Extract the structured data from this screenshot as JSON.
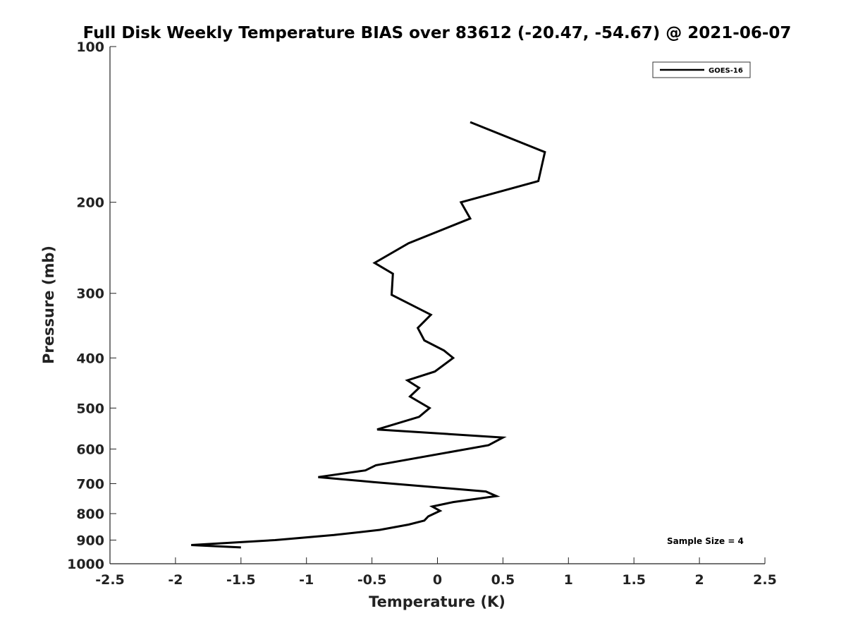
{
  "chart_data": {
    "type": "line",
    "title": "Full Disk Weekly Temperature BIAS over 83612 (-20.47, -54.67) @ 2021-06-07",
    "xlabel": "Temperature (K)",
    "ylabel": "Pressure (mb)",
    "xlim": [
      -2.5,
      2.5
    ],
    "ylim": [
      100,
      1000
    ],
    "y_scale": "log",
    "y_reversed": true,
    "x_ticks": [
      -2.5,
      -2,
      -1.5,
      -1,
      -0.5,
      0,
      0.5,
      1,
      1.5,
      2,
      2.5
    ],
    "x_tick_labels": [
      "-2.5",
      "-2",
      "-1.5",
      "-1",
      "-0.5",
      "0",
      "0.5",
      "1",
      "1.5",
      "2",
      "2.5"
    ],
    "y_ticks": [
      100,
      200,
      300,
      400,
      500,
      600,
      700,
      800,
      900,
      1000
    ],
    "y_tick_labels": [
      "100",
      "200",
      "300",
      "400",
      "500",
      "600",
      "700",
      "800",
      "900",
      "1000"
    ],
    "grid": false,
    "legend_position": "top-right",
    "line_color": "#000000",
    "series": [
      {
        "name": "GOES-16",
        "points": [
          [
            0.25,
            140
          ],
          [
            0.82,
            160
          ],
          [
            0.77,
            182
          ],
          [
            0.18,
            200
          ],
          [
            0.25,
            215
          ],
          [
            -0.22,
            240
          ],
          [
            -0.48,
            262
          ],
          [
            -0.34,
            275
          ],
          [
            -0.35,
            302
          ],
          [
            -0.05,
            330
          ],
          [
            -0.15,
            350
          ],
          [
            -0.1,
            370
          ],
          [
            0.05,
            387
          ],
          [
            0.12,
            400
          ],
          [
            -0.02,
            425
          ],
          [
            -0.23,
            442
          ],
          [
            -0.14,
            457
          ],
          [
            -0.21,
            475
          ],
          [
            -0.06,
            500
          ],
          [
            -0.14,
            520
          ],
          [
            -0.46,
            550
          ],
          [
            0.5,
            570
          ],
          [
            0.39,
            590
          ],
          [
            -0.47,
            645
          ],
          [
            -0.55,
            660
          ],
          [
            -0.91,
            680
          ],
          [
            -0.49,
            695
          ],
          [
            0.37,
            725
          ],
          [
            0.45,
            740
          ],
          [
            0.12,
            760
          ],
          [
            -0.04,
            775
          ],
          [
            0.02,
            790
          ],
          [
            -0.07,
            810
          ],
          [
            -0.1,
            825
          ],
          [
            -0.22,
            840
          ],
          [
            -0.44,
            860
          ],
          [
            -0.79,
            880
          ],
          [
            -1.24,
            900
          ],
          [
            -1.88,
            920
          ],
          [
            -1.5,
            930
          ]
        ]
      }
    ],
    "annotation": "Sample Size = 4"
  }
}
